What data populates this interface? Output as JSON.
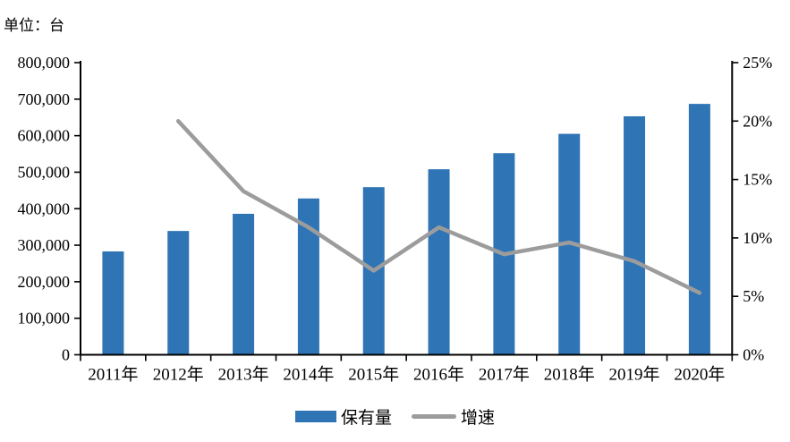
{
  "unit_label": "单位：台",
  "colors": {
    "bar": "#2F74B5",
    "line": "#9C9C9C",
    "axis": "#000000",
    "text": "#000000",
    "background": "#FFFFFF"
  },
  "legend": {
    "items": [
      {
        "label": "保有量",
        "marker": "bar-swatch"
      },
      {
        "label": "增速",
        "marker": "line-swatch"
      }
    ]
  },
  "chart_data": {
    "type": "bar+line combo, dual axis",
    "unit_label": "单位：台",
    "categories": [
      "2011年",
      "2012年",
      "2013年",
      "2014年",
      "2015年",
      "2016年",
      "2017年",
      "2018年",
      "2019年",
      "2020年"
    ],
    "series": [
      {
        "name": "保有量",
        "type": "bar",
        "axis": "left",
        "color": "#2F74B5",
        "values": [
          283000,
          339000,
          386000,
          428000,
          459000,
          508000,
          552000,
          605000,
          653000,
          687000
        ]
      },
      {
        "name": "增速",
        "type": "line",
        "axis": "right",
        "color": "#9C9C9C",
        "values": [
          null,
          20.0,
          14.0,
          10.9,
          7.2,
          10.9,
          8.6,
          9.6,
          8.0,
          5.3
        ]
      }
    ],
    "left_axis": {
      "min": 0,
      "max": 800000,
      "step": 100000,
      "tick_labels": [
        "0",
        "100,000",
        "200,000",
        "300,000",
        "400,000",
        "500,000",
        "600,000",
        "700,000",
        "800,000"
      ]
    },
    "right_axis": {
      "min": 0,
      "max": 25,
      "step": 5,
      "tick_labels": [
        "0%",
        "5%",
        "10%",
        "15%",
        "20%",
        "25%"
      ]
    },
    "grid": false,
    "legend_position": "bottom"
  }
}
